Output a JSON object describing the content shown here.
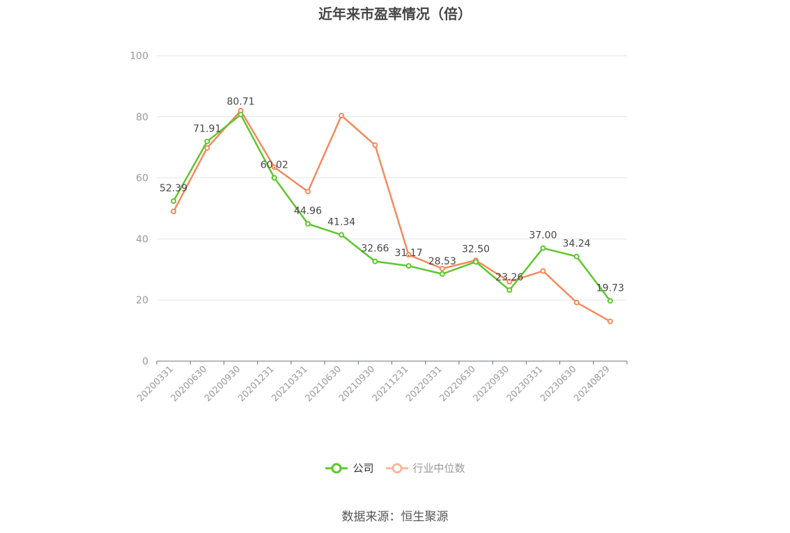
{
  "chart_data": {
    "type": "line",
    "title": "近年来市盈率情况（倍）",
    "categories": [
      "20200331",
      "20200630",
      "20200930",
      "20201231",
      "20210331",
      "20210630",
      "20210930",
      "20211231",
      "20220331",
      "20220630",
      "20220930",
      "20230331",
      "20230630",
      "20240829"
    ],
    "series": [
      {
        "name": "公司",
        "color": "#5ec62b",
        "values": [
          52.39,
          71.91,
          80.71,
          60.02,
          44.96,
          41.34,
          32.66,
          31.17,
          28.53,
          32.5,
          23.26,
          37.0,
          34.24,
          19.73
        ],
        "labels": [
          "52.39",
          "71.91",
          "80.71",
          "60.02",
          "44.96",
          "41.34",
          "32.66",
          "31.17",
          "28.53",
          "32.50",
          "23.26",
          "37.00",
          "34.24",
          "19.73"
        ]
      },
      {
        "name": "行业中位数",
        "color": "#f5895b",
        "values": [
          49.0,
          69.8,
          82.0,
          63.5,
          55.5,
          80.4,
          70.7,
          34.8,
          30.3,
          33.0,
          26.0,
          29.5,
          19.2,
          13.0
        ]
      }
    ],
    "ylim": [
      0,
      100
    ],
    "yticks": [
      0,
      20,
      40,
      60,
      80,
      100
    ],
    "grid": true,
    "legend_position": "bottom"
  },
  "legend": {
    "company": "公司",
    "industry": "行业中位数"
  },
  "source": "数据来源：恒生聚源"
}
